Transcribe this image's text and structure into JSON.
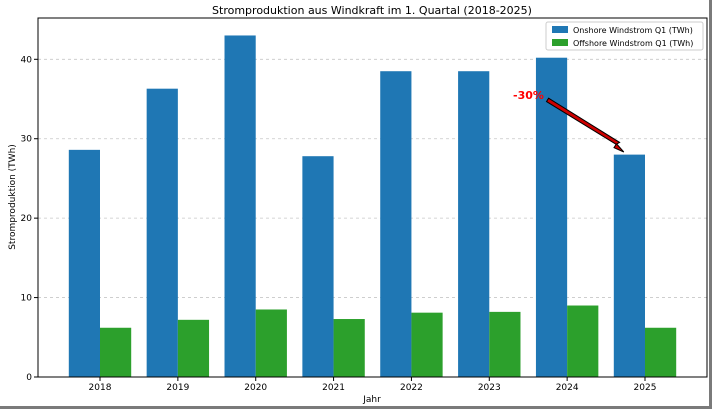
{
  "chart_data": {
    "type": "bar",
    "title": "Stromproduktion aus Windkraft im 1. Quartal (2018-2025)",
    "xlabel": "Jahr",
    "ylabel": "Stromproduktion (TWh)",
    "categories": [
      "2018",
      "2019",
      "2020",
      "2021",
      "2022",
      "2023",
      "2024",
      "2025"
    ],
    "series": [
      {
        "name": "Onshore Windstrom Q1 (TWh)",
        "color": "#1f77b4",
        "values": [
          28.6,
          36.3,
          43.0,
          27.8,
          38.5,
          38.5,
          40.2,
          28.0
        ]
      },
      {
        "name": "Offshore Windstrom Q1 (TWh)",
        "color": "#2ca02c",
        "values": [
          6.2,
          7.2,
          8.5,
          7.3,
          8.1,
          8.2,
          9.0,
          6.2
        ]
      }
    ],
    "ylim": [
      0,
      45.2
    ],
    "yticks": [
      0,
      10,
      20,
      30,
      40
    ],
    "grid": "y-dashed",
    "legend": "top-right",
    "annotation": {
      "text": "-30%",
      "color": "#ff0000",
      "points_to": "2025 Onshore"
    }
  }
}
